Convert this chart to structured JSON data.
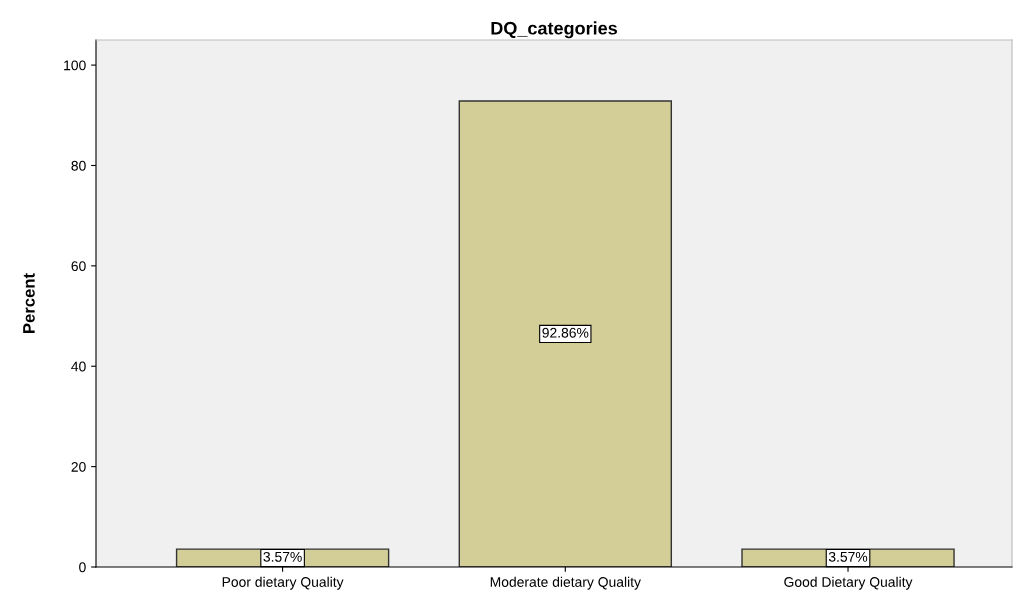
{
  "chart_data": {
    "type": "bar",
    "title": "DQ_categories",
    "ylabel": "Percent",
    "categories": [
      "Poor dietary Quality",
      "Moderate dietary Quality",
      "Good Dietary Quality"
    ],
    "values": [
      3.57,
      92.86,
      3.57
    ],
    "value_labels": [
      "3.57%",
      "92.86%",
      "3.57%"
    ],
    "color": "#d3ce97",
    "ylim": [
      0,
      105
    ],
    "yticks": [
      0,
      20,
      40,
      60,
      80,
      100
    ],
    "grid": false,
    "legend": false
  }
}
